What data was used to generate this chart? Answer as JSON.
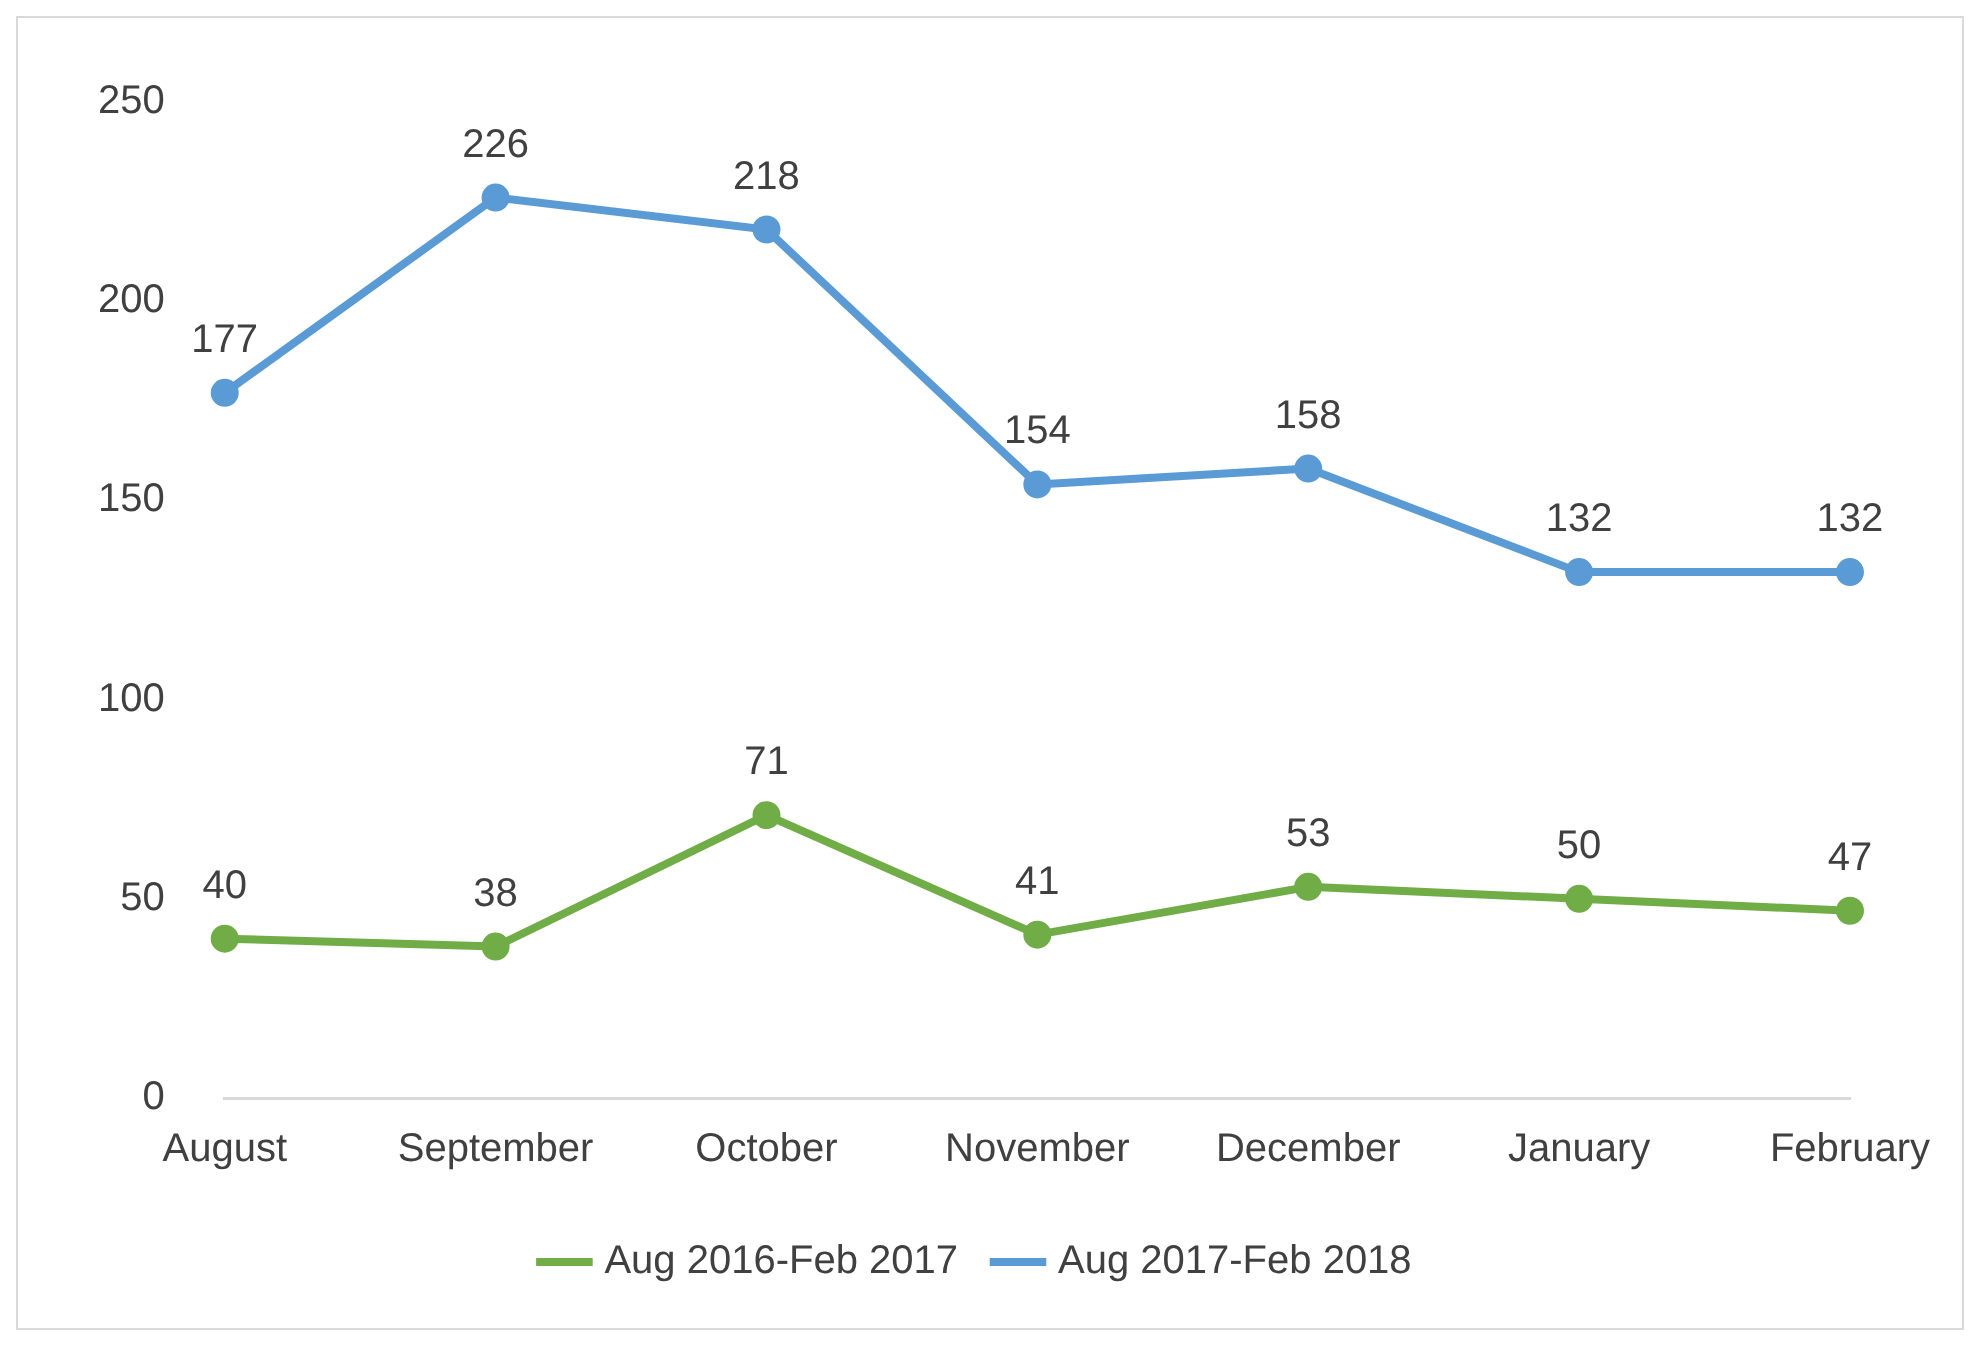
{
  "chart_data": {
    "type": "line",
    "categories": [
      "August",
      "September",
      "October",
      "November",
      "December",
      "January",
      "February"
    ],
    "series": [
      {
        "name": "Aug 2016-Feb 2017",
        "color": "#70ad47",
        "values": [
          40,
          38,
          71,
          41,
          53,
          50,
          47
        ]
      },
      {
        "name": "Aug 2017-Feb 2018",
        "color": "#5b9bd5",
        "values": [
          177,
          226,
          218,
          154,
          158,
          132,
          132
        ]
      }
    ],
    "ylim": [
      0,
      250
    ],
    "yticks": [
      0,
      50,
      100,
      150,
      200,
      250
    ],
    "grid": false,
    "legend": "bottom",
    "marker": "circle",
    "line_style": "solid",
    "data_labels": true
  }
}
